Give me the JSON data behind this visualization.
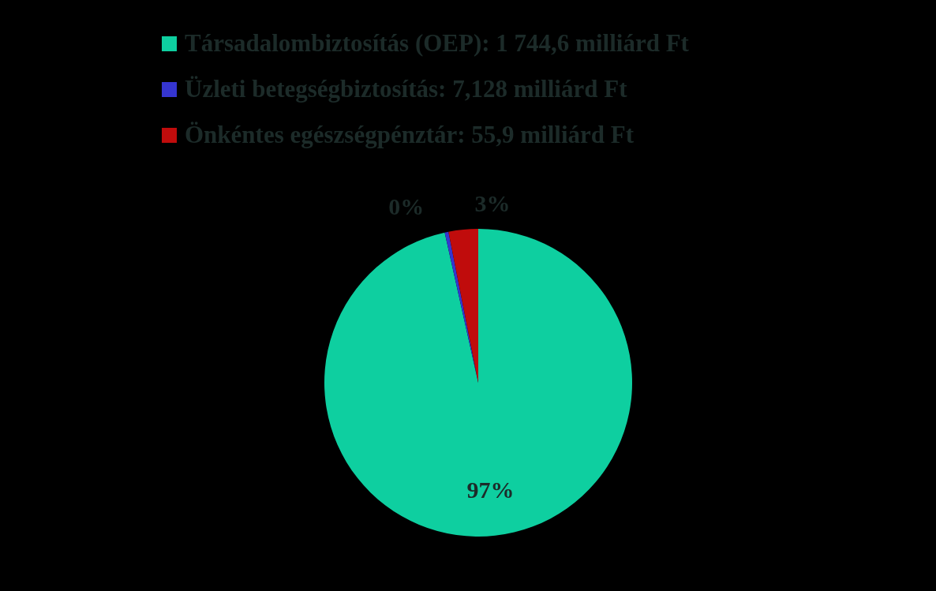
{
  "chart_data": {
    "type": "pie",
    "categories": [
      "Társadalombiztosítás (OEP): 1 744,6 milliárd Ft",
      "Üzleti betegségbiztosítás: 7,128 milliárd Ft",
      "Önkéntes egészségpénztár: 55,9 milliárd Ft"
    ],
    "values": [
      96.5,
      0.4,
      3.1
    ],
    "value_labels": [
      "97%",
      "0%",
      "3%"
    ],
    "colors": [
      "#0ecfa0",
      "#3535d0",
      "#c00c0c"
    ],
    "legend": "top"
  }
}
